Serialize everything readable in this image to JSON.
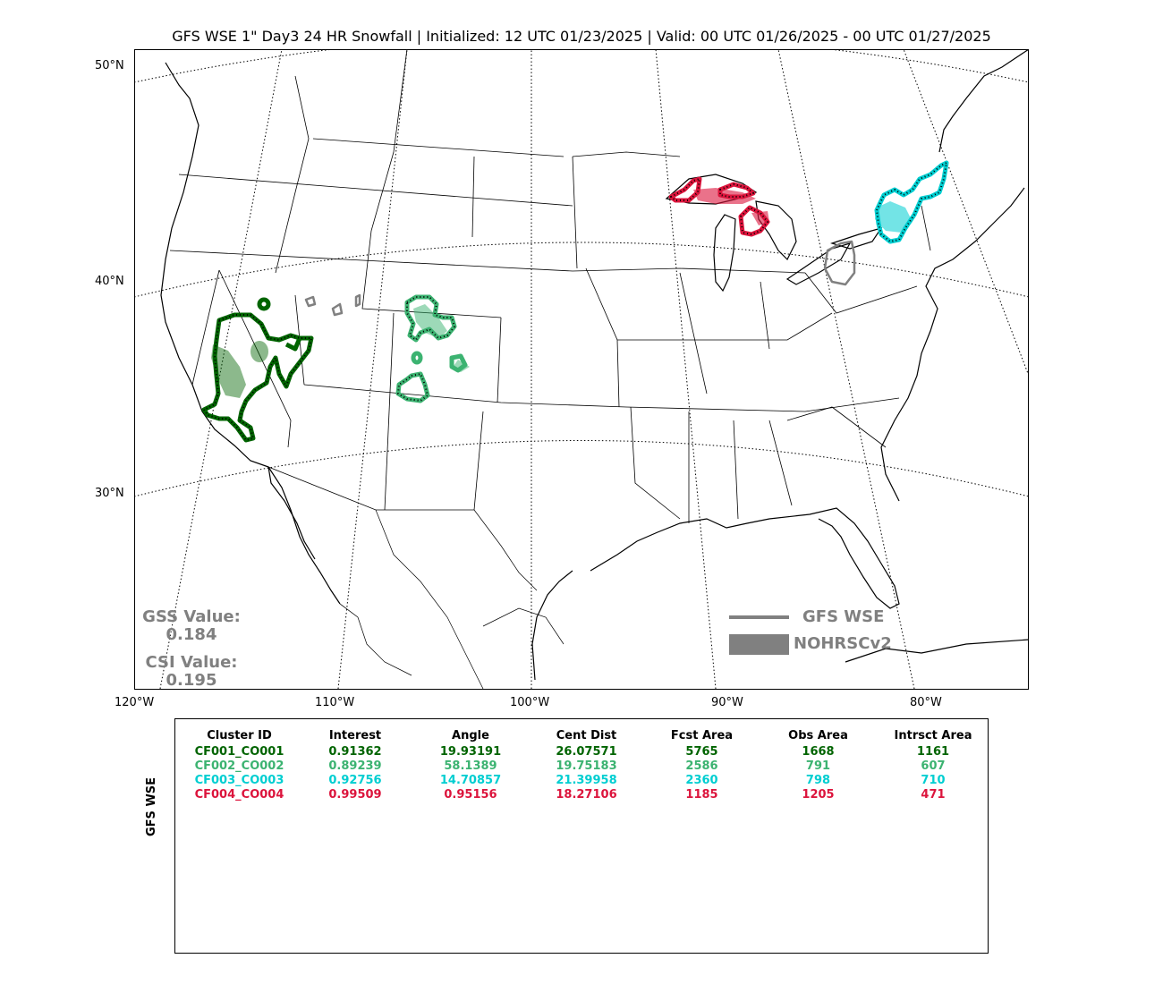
{
  "title": "GFS WSE 1\" Day3 24 HR Snowfall | Initialized: 12 UTC 01/23/2025 | Valid: 00 UTC 01/26/2025 - 00 UTC 01/27/2025",
  "lat_labels": [
    "50°N",
    "40°N",
    "30°N"
  ],
  "lon_labels": [
    "120°W",
    "110°W",
    "100°W",
    "90°W",
    "80°W"
  ],
  "gss": {
    "label": "GSS Value:",
    "value": "0.184"
  },
  "csi": {
    "label": "CSI Value:",
    "value": "0.195"
  },
  "legend": {
    "forecast_label": "GFS WSE",
    "observed_label": "NOHRSCv2",
    "color": "#808080"
  },
  "table": {
    "ylabel": "GFS WSE",
    "headers": [
      "Cluster ID",
      "Interest",
      "Angle",
      "Cent Dist",
      "Fcst Area",
      "Obs Area",
      "Intrsct Area"
    ],
    "rows": [
      {
        "color": "#006400",
        "cells": [
          "CF001_CO001",
          "0.91362",
          "19.93191",
          "26.07571",
          "5765",
          "1668",
          "1161"
        ]
      },
      {
        "color": "#3cb371",
        "cells": [
          "CF002_CO002",
          "0.89239",
          "58.1389",
          "19.75183",
          "2586",
          "791",
          "607"
        ]
      },
      {
        "color": "#00ced1",
        "cells": [
          "CF003_CO003",
          "0.92756",
          "14.70857",
          "21.39958",
          "2360",
          "798",
          "710"
        ]
      },
      {
        "color": "#dc143c",
        "cells": [
          "CF004_CO004",
          "0.99509",
          "0.95156",
          "18.27106",
          "1185",
          "1205",
          "471"
        ]
      }
    ]
  },
  "clusters": [
    {
      "id": "CF001_CO001",
      "color": "#006400",
      "region": "Sierra Nevada / Nevada"
    },
    {
      "id": "CF002_CO002",
      "color": "#3cb371",
      "region": "Colorado / New Mexico"
    },
    {
      "id": "CF003_CO003",
      "color": "#00ced1",
      "region": "Northeast"
    },
    {
      "id": "CF004_CO004",
      "color": "#dc143c",
      "region": "Upper Michigan"
    }
  ]
}
